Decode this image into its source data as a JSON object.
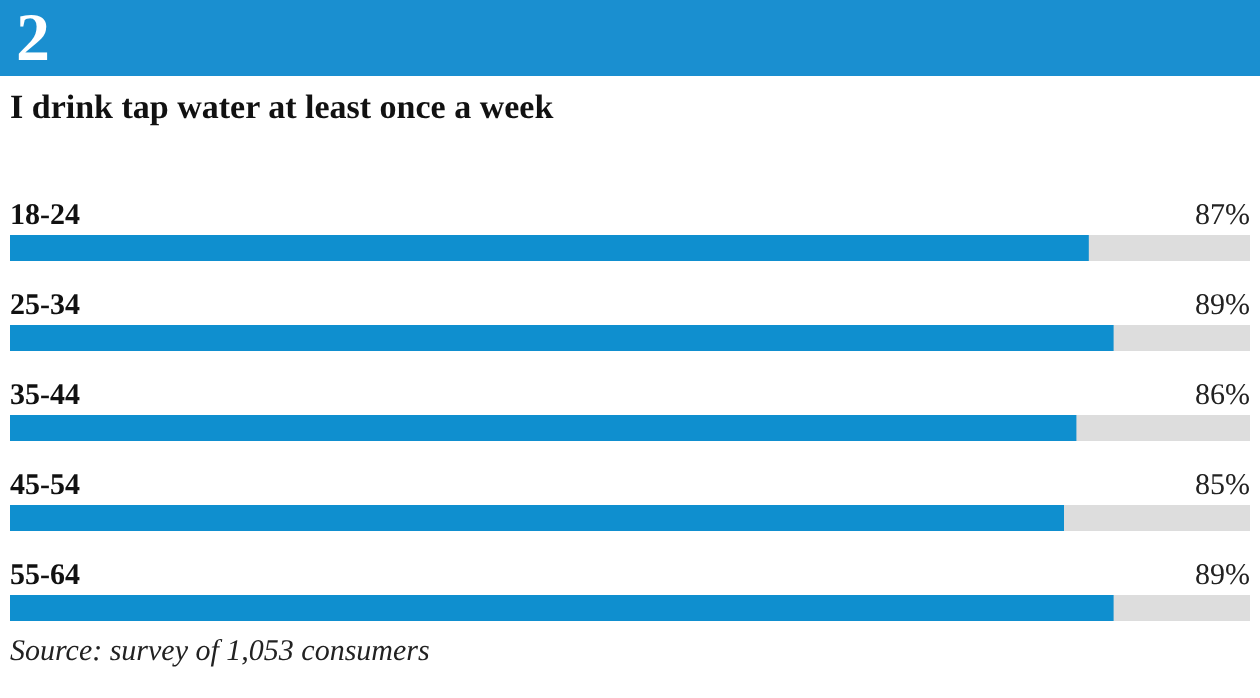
{
  "chart_data": {
    "type": "bar",
    "orientation": "horizontal",
    "title": "I drink tap water at least once a week",
    "categories": [
      "18-24",
      "25-34",
      "35-44",
      "45-54",
      "55-64"
    ],
    "values": [
      87,
      89,
      86,
      85,
      89
    ],
    "value_labels": [
      "87%",
      "89%",
      "86%",
      "85%",
      "89%"
    ],
    "color": "#0f8fcf",
    "xlim": [
      0,
      100
    ],
    "annotations": [
      "2",
      "Source: survey of 1,053 consumers"
    ]
  }
}
